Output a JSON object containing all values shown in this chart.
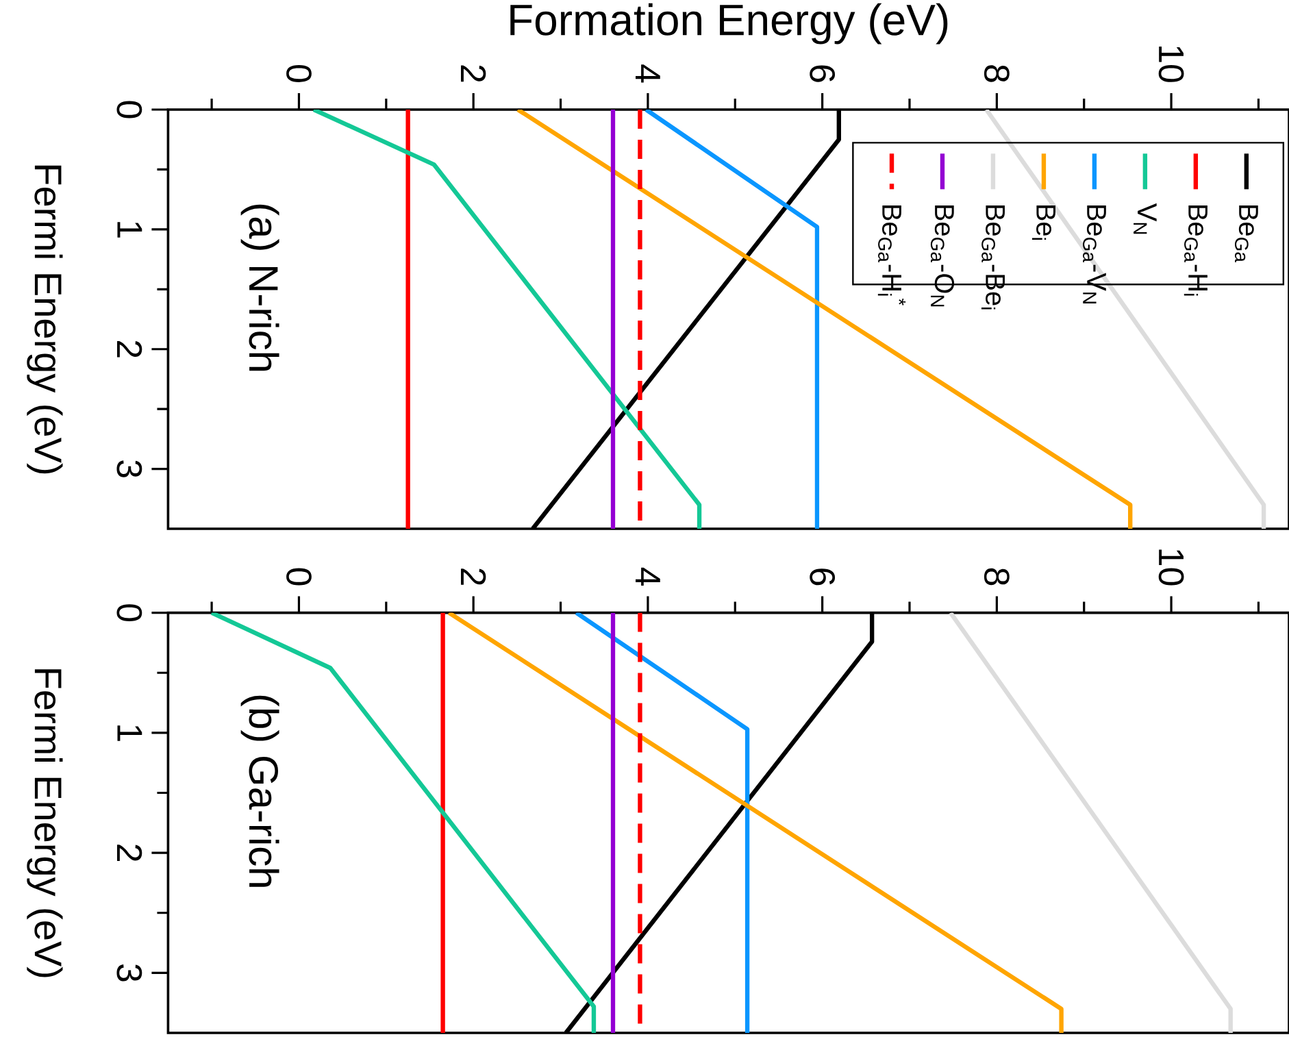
{
  "chart_data": [
    {
      "type": "line",
      "xlabel": "Formation Energy (eV)",
      "ylabel": "Fermi Energy (eV)",
      "annotations": [
        "(a) N-rich"
      ],
      "xlim": [
        -1.5,
        11.35
      ],
      "ylim": [
        3.5,
        0
      ],
      "xticks": [
        {
          "value": -1,
          "label": null
        },
        0,
        {
          "value": 1,
          "label": null
        },
        2,
        {
          "value": 3,
          "label": null
        },
        4,
        {
          "value": 5,
          "label": null
        },
        6,
        {
          "value": 7,
          "label": null
        },
        8,
        {
          "value": 9,
          "label": null
        },
        10,
        {
          "value": 11,
          "label": null
        }
      ],
      "yticks": [
        0,
        {
          "value": 0.5,
          "label": null
        },
        1,
        {
          "value": 1.5,
          "label": null
        },
        2,
        {
          "value": 2.5,
          "label": null
        },
        3
      ],
      "legend": "top right",
      "line_style": "solid",
      "series": [
        {
          "name": "Be$_{Ga}$",
          "color": "#000000",
          "x": [
            6.19,
            6.19,
            2.68
          ],
          "values": [
            0,
            0.25,
            3.5
          ]
        },
        {
          "name": "Be$_{Ga}$-H$_{i}$",
          "color": "#ff0000",
          "x": [
            1.25,
            1.25
          ],
          "values": [
            0,
            3.5
          ]
        },
        {
          "name": "V$_{N}$",
          "color": "#14c896",
          "x": [
            0.17,
            1.55,
            4.59,
            4.59
          ],
          "values": [
            0,
            0.46,
            3.3,
            3.5
          ]
        },
        {
          "name": "Be$_{Ga}$-V$_{N}$",
          "color": "#0a96ff",
          "x": [
            3.98,
            5.94,
            5.94
          ],
          "values": [
            0,
            0.98,
            3.5
          ]
        },
        {
          "name": "Be$_{i}$",
          "color": "#ffa500",
          "x": [
            2.51,
            9.53,
            9.53
          ],
          "values": [
            0,
            3.3,
            3.5
          ]
        },
        {
          "name": "Be$_{Ga}$-Be$_{i}$",
          "color": "#dcdcdc",
          "x": [
            7.88,
            11.06,
            11.06
          ],
          "values": [
            0,
            3.3,
            3.5
          ]
        },
        {
          "name": "Be$_{Ga}$-O$_{N}$",
          "color": "#9400d3",
          "x": [
            3.6,
            3.6
          ],
          "values": [
            0,
            3.5
          ]
        },
        {
          "name": "Be$_{Ga}$-H$_{i}$$^{*}$",
          "color": "#ff0000",
          "x": [
            3.91,
            3.91
          ],
          "values": [
            0,
            3.5
          ],
          "line_style": "dashed"
        }
      ]
    },
    {
      "type": "line",
      "ylabel": "Fermi Energy (eV)",
      "annotations": [
        "(b) Ga-rich"
      ],
      "xlim": [
        -1.5,
        11.35
      ],
      "ylim": [
        3.5,
        0
      ],
      "xticks": [
        {
          "value": -1,
          "label": null
        },
        0,
        {
          "value": 1,
          "label": null
        },
        2,
        {
          "value": 3,
          "label": null
        },
        4,
        {
          "value": 5,
          "label": null
        },
        6,
        {
          "value": 7,
          "label": null
        },
        8,
        {
          "value": 9,
          "label": null
        },
        10,
        {
          "value": 11,
          "label": null
        }
      ],
      "yticks": [
        0,
        {
          "value": 0.5,
          "label": null
        },
        1,
        {
          "value": 1.5,
          "label": null
        },
        2,
        {
          "value": 2.5,
          "label": null
        },
        3
      ],
      "line_style": "solid",
      "series": [
        {
          "color": "#000000",
          "x": [
            6.57,
            6.57,
            3.06
          ],
          "values": [
            0,
            0.24,
            3.5
          ]
        },
        {
          "color": "#ff0000",
          "x": [
            1.65,
            1.65
          ],
          "values": [
            0,
            3.5
          ]
        },
        {
          "color": "#14c896",
          "x": [
            -1.0,
            0.36,
            3.38,
            3.38
          ],
          "values": [
            0,
            0.46,
            3.28,
            3.5
          ]
        },
        {
          "color": "#0a96ff",
          "x": [
            3.18,
            5.14,
            5.14
          ],
          "values": [
            0,
            0.97,
            3.5
          ]
        },
        {
          "color": "#ffa500",
          "x": [
            1.72,
            8.74,
            8.74
          ],
          "values": [
            0,
            3.3,
            3.5
          ]
        },
        {
          "color": "#dcdcdc",
          "x": [
            7.47,
            10.68,
            10.68
          ],
          "values": [
            0,
            3.3,
            3.5
          ]
        },
        {
          "color": "#9400d3",
          "x": [
            3.6,
            3.6
          ],
          "values": [
            0,
            3.5
          ]
        },
        {
          "color": "#ff0000",
          "x": [
            3.91,
            3.91
          ],
          "values": [
            0,
            3.5
          ],
          "line_style": "dashed"
        }
      ]
    }
  ]
}
